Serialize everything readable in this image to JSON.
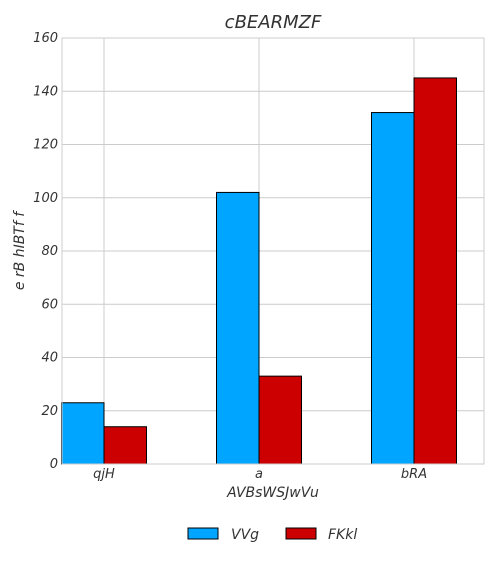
{
  "chart_data": {
    "type": "bar",
    "title": "cBEARMZF",
    "xlabel": "AVBsWSJwVu",
    "ylabel": "e rB  hIBTf f",
    "categories": [
      "qjH",
      "a",
      "bRA"
    ],
    "series": [
      {
        "name": "VVg",
        "values": [
          23,
          102,
          132
        ],
        "color": "#00a5ff"
      },
      {
        "name": "FKkl",
        "values": [
          14,
          33,
          145
        ],
        "color": "#cc0000"
      }
    ],
    "ylim": [
      0,
      160
    ],
    "yticks": [
      0,
      20,
      40,
      60,
      80,
      100,
      120,
      140,
      160
    ],
    "grid": true,
    "legend_position": "bottom-center"
  }
}
